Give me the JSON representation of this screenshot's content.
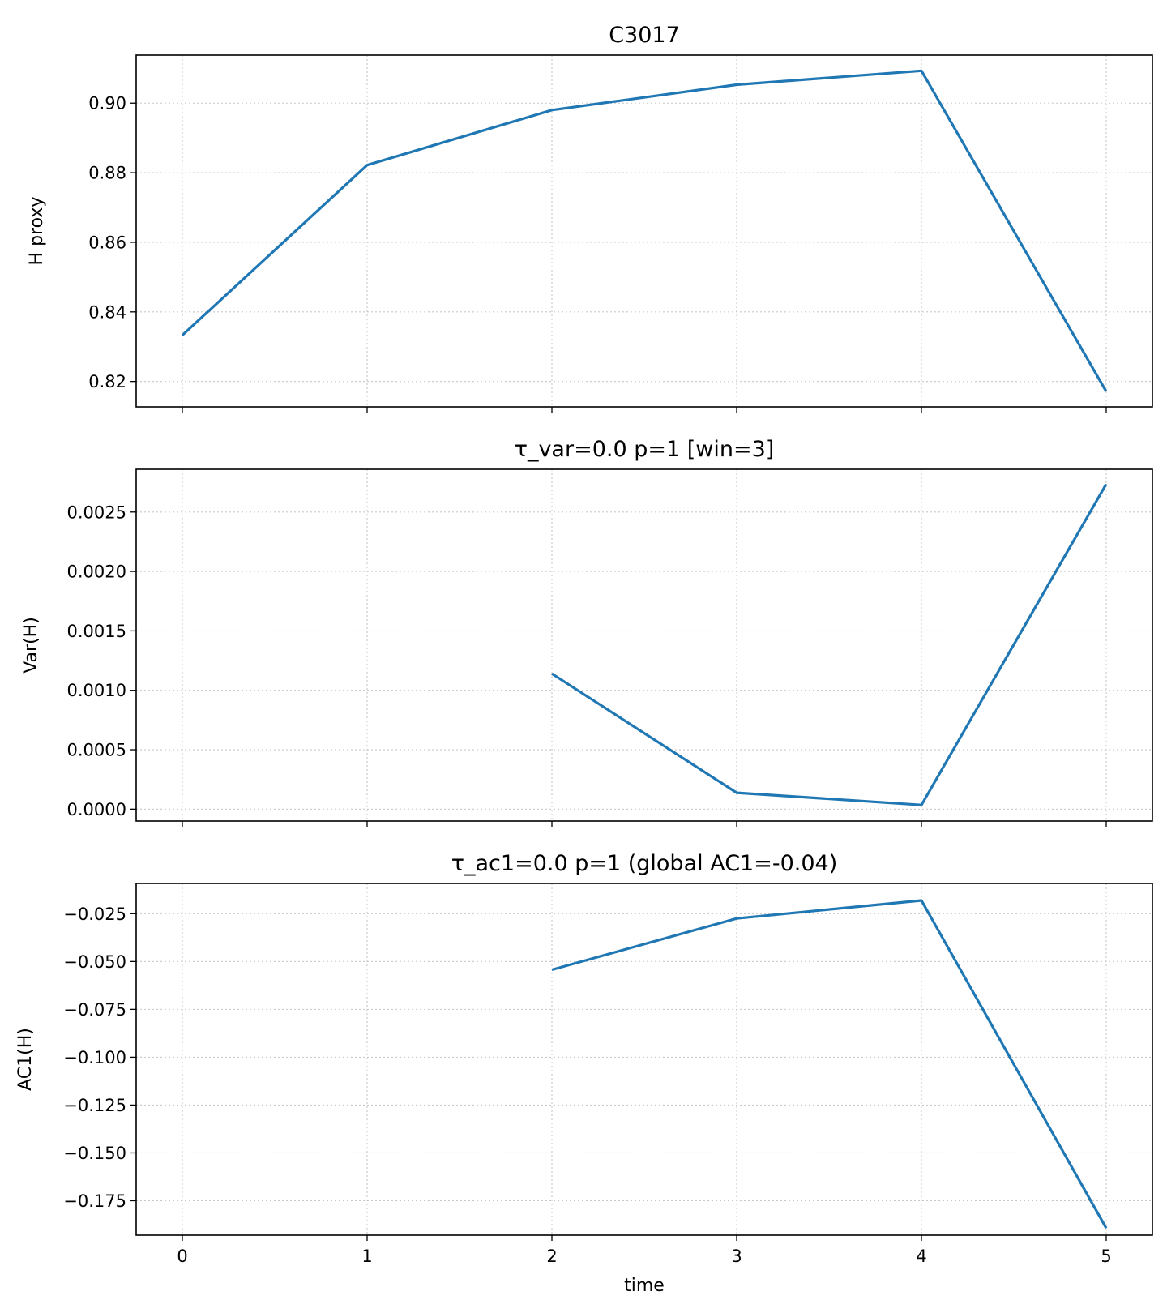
{
  "chart_data": [
    {
      "type": "line",
      "title": "C3017",
      "xlabel": "",
      "ylabel": "H proxy",
      "xlim": [
        -0.25,
        5.25
      ],
      "ylim": [
        0.8127,
        0.9138
      ],
      "x_ticks": [
        0,
        1,
        2,
        3,
        4,
        5
      ],
      "x_tick_labels": [],
      "y_ticks": [
        0.82,
        0.84,
        0.86,
        0.88,
        0.9
      ],
      "y_tick_labels": [
        "0.82",
        "0.84",
        "0.86",
        "0.88",
        "0.90"
      ],
      "grid": true,
      "color": "#1f77b4",
      "x": [
        0,
        1,
        2,
        3,
        4,
        5
      ],
      "y": [
        0.8333,
        0.8822,
        0.898,
        0.9053,
        0.9093,
        0.8171
      ]
    },
    {
      "type": "line",
      "title": "τ_var=0.0  p=1   [win=3]",
      "xlabel": "",
      "ylabel": "Var(H)",
      "xlim": [
        -0.25,
        5.25
      ],
      "ylim": [
        -0.0001,
        0.00286
      ],
      "x_ticks": [
        0,
        1,
        2,
        3,
        4,
        5
      ],
      "x_tick_labels": [],
      "y_ticks": [
        0.0,
        0.0005,
        0.001,
        0.0015,
        0.002,
        0.0025
      ],
      "y_tick_labels": [
        "0.0000",
        "0.0005",
        "0.0010",
        "0.0015",
        "0.0020",
        "0.0025"
      ],
      "grid": true,
      "color": "#1f77b4",
      "x": [
        2,
        3,
        4,
        5
      ],
      "y": [
        0.00114,
        0.000138,
        3.5e-05,
        0.002735
      ]
    },
    {
      "type": "line",
      "title": "τ_ac1=0.0  p=1   (global AC1=-0.04)",
      "xlabel": "time",
      "ylabel": "AC1(H)",
      "xlim": [
        -0.25,
        5.25
      ],
      "ylim": [
        -0.193,
        -0.0092
      ],
      "x_ticks": [
        0,
        1,
        2,
        3,
        4,
        5
      ],
      "x_tick_labels": [
        "0",
        "1",
        "2",
        "3",
        "4",
        "5"
      ],
      "y_ticks": [
        -0.175,
        -0.15,
        -0.125,
        -0.1,
        -0.075,
        -0.05,
        -0.025
      ],
      "y_tick_labels": [
        "−0.175",
        "−0.150",
        "−0.125",
        "−0.100",
        "−0.075",
        "−0.050",
        "−0.025"
      ],
      "grid": true,
      "color": "#1f77b4",
      "x": [
        2,
        3,
        4,
        5
      ],
      "y": [
        -0.0543,
        -0.0275,
        -0.0181,
        -0.1893
      ]
    }
  ]
}
